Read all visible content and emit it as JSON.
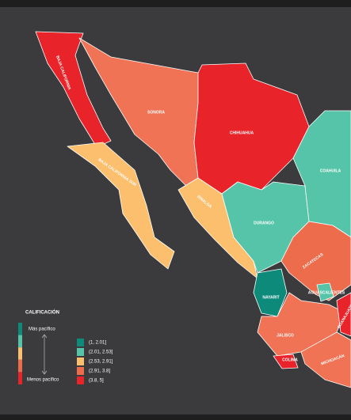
{
  "legend": {
    "title": "CALIFICACIÓN",
    "top_label": "Más pacífico",
    "bottom_label": "Menos pacífico",
    "classes": [
      {
        "label": "(1, 2.01]",
        "color": "#0e8a7b"
      },
      {
        "label": "(2.01, 2.53]",
        "color": "#55c4a8"
      },
      {
        "label": "(2.53, 2.91]",
        "color": "#fbbf6e"
      },
      {
        "label": "(2.91, 3.8]",
        "color": "#ec6c4b"
      },
      {
        "label": "(3.8, 5]",
        "color": "#e8232a"
      }
    ]
  },
  "states": [
    {
      "label": "BAJA CALIFORNIA",
      "color": "#e8232a"
    },
    {
      "label": "SONORA",
      "color": "#f07355"
    },
    {
      "label": "CHIHUAHUA",
      "color": "#e8232a"
    },
    {
      "label": "BAJA CALIFORNIA SUR",
      "color": "#fbbf6e"
    },
    {
      "label": "SINALOA",
      "color": "#fbbf6e"
    },
    {
      "label": "DURANGO",
      "color": "#55c4a8"
    },
    {
      "label": "COAHUILA",
      "color": "#55c4a8"
    },
    {
      "label": "NAYARIT",
      "color": "#0e8a7b"
    },
    {
      "label": "ZACATECAS",
      "color": "#ec6c4b"
    },
    {
      "label": "AGUASCALIENTES",
      "color": "#55c4a8"
    },
    {
      "label": "JALISCO",
      "color": "#f07355"
    },
    {
      "label": "COLIMA",
      "color": "#e8232a"
    },
    {
      "label": "MICHOACÁN",
      "color": "#f07355"
    },
    {
      "label": "GUANAJUATO",
      "color": "#e8232a"
    }
  ]
}
